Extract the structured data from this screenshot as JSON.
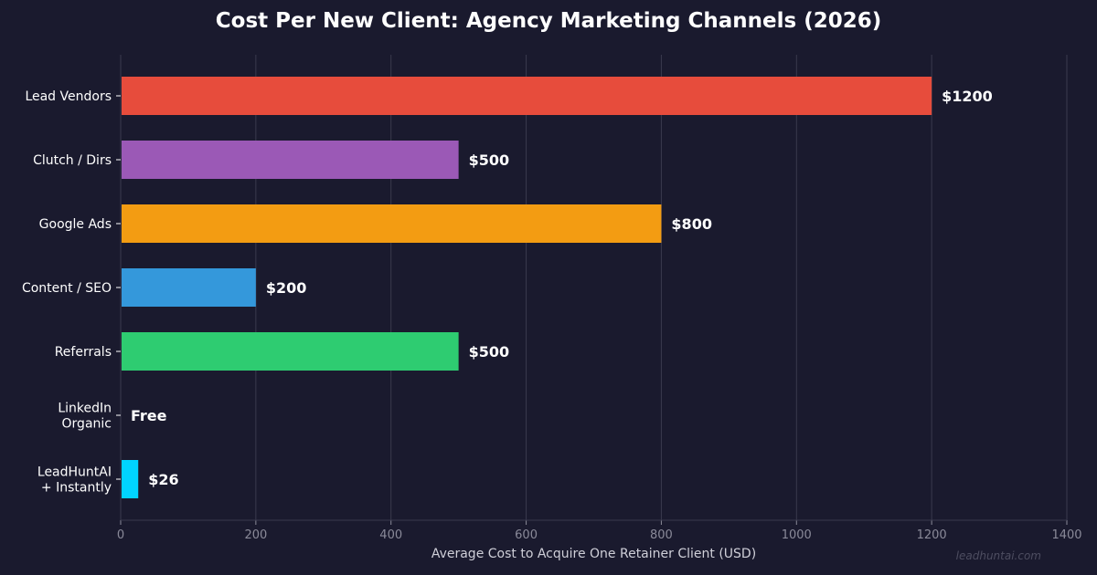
{
  "chart_data": {
    "type": "bar",
    "orientation": "horizontal",
    "title": "Cost Per New Client: Agency Marketing Channels (2026)",
    "xlabel": "Average Cost to Acquire One Retainer Client (USD)",
    "ylabel": "",
    "categories": [
      "Lead Vendors",
      "Clutch / Dirs",
      "Google Ads",
      "Content / SEO",
      "Referrals",
      "LinkedIn\nOrganic",
      "LeadHuntAI\n+ Instantly"
    ],
    "values": [
      1200,
      500,
      800,
      200,
      500,
      0,
      26
    ],
    "data_labels": [
      "$1200",
      "$500",
      "$800",
      "$200",
      "$500",
      "Free",
      "$26"
    ],
    "colors": [
      "#e74c3c",
      "#9b59b6",
      "#f39c12",
      "#3498db",
      "#2ecc71",
      "#1a1a2e",
      "#00d4ff"
    ],
    "xlim": [
      0,
      1400
    ],
    "xticks": [
      0,
      200,
      400,
      600,
      800,
      1000,
      1200,
      1400
    ],
    "xtick_labels": [
      "0",
      "200",
      "400",
      "600",
      "800",
      "1000",
      "1200",
      "1400"
    ],
    "grid": "vertical",
    "legend": "none"
  },
  "watermark": "leadhuntai.com",
  "colors": {
    "background": "#1a1a2e",
    "grid": "#3a3a4e",
    "axis_text": "#8a8a99",
    "label_text": "#ffffff"
  }
}
